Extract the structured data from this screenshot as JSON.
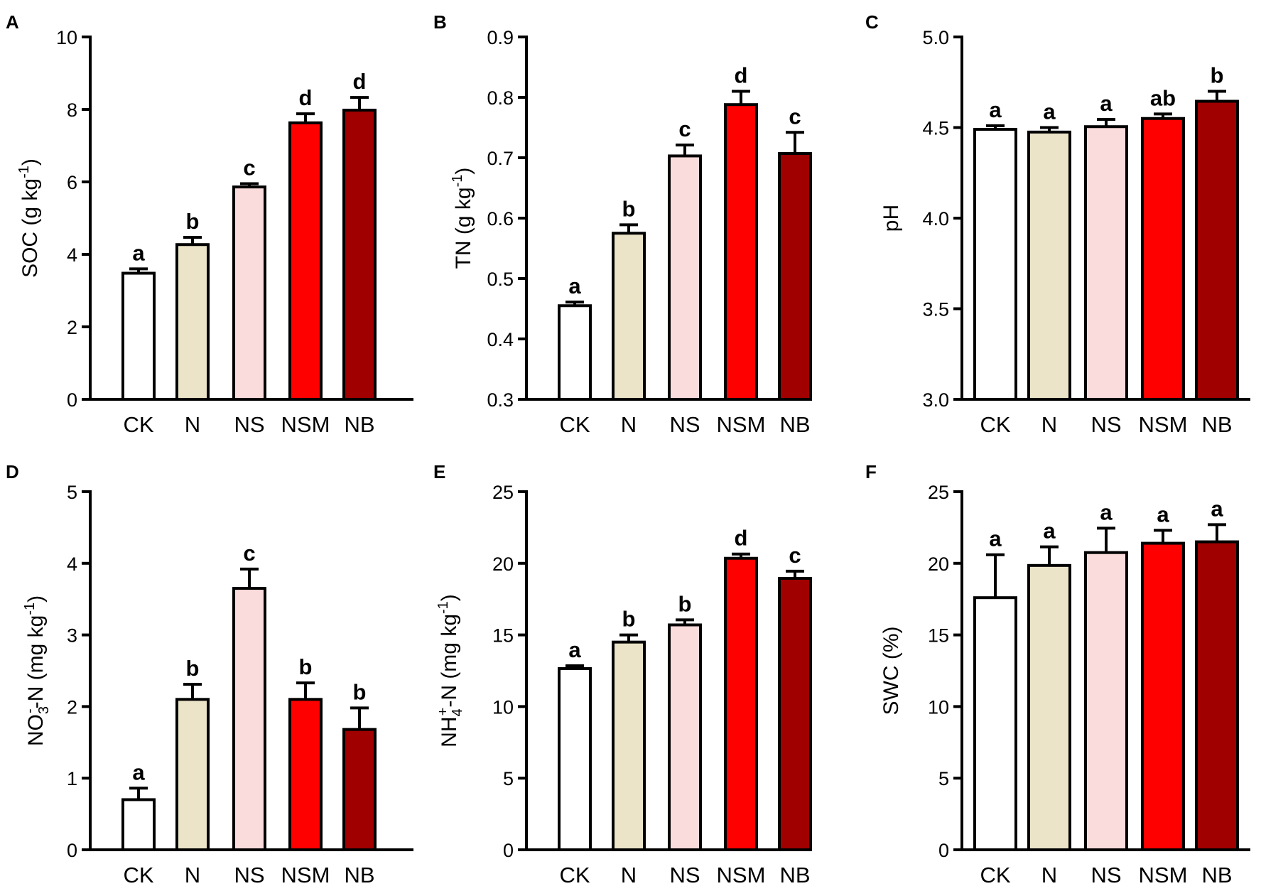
{
  "figure": {
    "colors": {
      "CK": "#ffffff",
      "N": "#ebe4c8",
      "NS": "#fbdcdc",
      "NSM": "#ff0000",
      "NB": "#a00000",
      "stroke": "#000000"
    }
  },
  "chart_data": [
    {
      "type": "bar",
      "panel": "A",
      "categories": [
        "CK",
        "N",
        "NS",
        "NSM",
        "NB"
      ],
      "values": [
        3.48,
        4.27,
        5.86,
        7.63,
        7.98
      ],
      "errors": [
        0.12,
        0.2,
        0.09,
        0.25,
        0.35
      ],
      "significance": [
        "a",
        "b",
        "c",
        "d",
        "d"
      ],
      "ylabel": {
        "main": "SOC (g kg",
        "sup": "-1",
        "tail": ")"
      },
      "ylim": [
        0,
        10
      ],
      "yticks": [
        0,
        2,
        4,
        6,
        8,
        10
      ],
      "ytick_labels": [
        "0",
        "2",
        "4",
        "6",
        "8",
        "10"
      ]
    },
    {
      "type": "bar",
      "panel": "B",
      "categories": [
        "CK",
        "N",
        "NS",
        "NSM",
        "NB"
      ],
      "values": [
        0.455,
        0.575,
        0.703,
        0.788,
        0.707
      ],
      "errors": [
        0.006,
        0.014,
        0.018,
        0.022,
        0.035
      ],
      "significance": [
        "a",
        "b",
        "c",
        "d",
        "c"
      ],
      "ylabel": {
        "main": "TN (g kg",
        "sup": "-1",
        "tail": ")"
      },
      "ylim": [
        0.3,
        0.9
      ],
      "yticks": [
        0.3,
        0.4,
        0.5,
        0.6,
        0.7,
        0.8,
        0.9
      ],
      "ytick_labels": [
        "0.3",
        "0.4",
        "0.5",
        "0.6",
        "0.7",
        "0.8",
        "0.9"
      ]
    },
    {
      "type": "bar",
      "panel": "C",
      "categories": [
        "CK",
        "N",
        "NS",
        "NSM",
        "NB"
      ],
      "values": [
        4.49,
        4.475,
        4.505,
        4.55,
        4.645
      ],
      "errors": [
        0.02,
        0.025,
        0.04,
        0.025,
        0.055
      ],
      "significance": [
        "a",
        "a",
        "a",
        "ab",
        "b"
      ],
      "ylabel": {
        "main": "pH"
      },
      "ylim": [
        3.0,
        5.0
      ],
      "yticks": [
        3.0,
        3.5,
        4.0,
        4.5,
        5.0
      ],
      "ytick_labels": [
        "3.0",
        "3.5",
        "4.0",
        "4.5",
        "5.0"
      ]
    },
    {
      "type": "bar",
      "panel": "D",
      "categories": [
        "CK",
        "N",
        "NS",
        "NSM",
        "NB"
      ],
      "values": [
        0.7,
        2.1,
        3.65,
        2.1,
        1.68
      ],
      "errors": [
        0.16,
        0.21,
        0.27,
        0.23,
        0.3
      ],
      "significance": [
        "a",
        "b",
        "c",
        "b",
        "b"
      ],
      "ylabel": {
        "main": "NO",
        "sub": "3",
        "sup": "-",
        "tail": "-N (mg kg",
        "sup2": "-1",
        "tail2": ")"
      },
      "ylim": [
        0,
        5
      ],
      "yticks": [
        0,
        1,
        2,
        3,
        4,
        5
      ],
      "ytick_labels": [
        "0",
        "1",
        "2",
        "3",
        "4",
        "5"
      ]
    },
    {
      "type": "bar",
      "panel": "E",
      "categories": [
        "CK",
        "N",
        "NS",
        "NSM",
        "NB"
      ],
      "values": [
        12.65,
        14.5,
        15.7,
        20.35,
        18.95
      ],
      "errors": [
        0.2,
        0.5,
        0.35,
        0.3,
        0.5
      ],
      "significance": [
        "a",
        "b",
        "b",
        "d",
        "c"
      ],
      "ylabel": {
        "main": "NH",
        "sub": "4",
        "sup": "+",
        "tail": "-N (mg kg",
        "sup2": "-1",
        "tail2": ")"
      },
      "ylim": [
        0,
        25
      ],
      "yticks": [
        0,
        5,
        10,
        15,
        20,
        25
      ],
      "ytick_labels": [
        "0",
        "5",
        "10",
        "15",
        "20",
        "25"
      ]
    },
    {
      "type": "bar",
      "panel": "F",
      "categories": [
        "CK",
        "N",
        "NS",
        "NSM",
        "NB"
      ],
      "values": [
        17.6,
        19.85,
        20.75,
        21.4,
        21.5
      ],
      "errors": [
        3.0,
        1.3,
        1.7,
        0.9,
        1.2
      ],
      "significance": [
        "a",
        "a",
        "a",
        "a",
        "a"
      ],
      "ylabel": {
        "main": "SWC (%)"
      },
      "ylim": [
        0,
        25
      ],
      "yticks": [
        0,
        5,
        10,
        15,
        20,
        25
      ],
      "ytick_labels": [
        "0",
        "5",
        "10",
        "15",
        "20",
        "25"
      ]
    }
  ]
}
